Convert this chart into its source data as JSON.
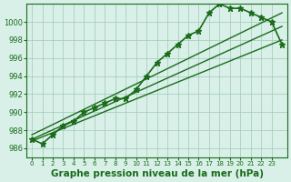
{
  "pressure_data": [
    987.0,
    986.5,
    987.5,
    988.5,
    989.0,
    990.0,
    990.5,
    991.0,
    991.5,
    991.5,
    992.5,
    994.0,
    995.5,
    996.5,
    997.5,
    998.5,
    999.0,
    1001.0,
    1002.0,
    1001.5,
    1001.5,
    1001.0,
    1000.5,
    1000.0,
    997.5
  ],
  "x_values": [
    0,
    1,
    2,
    3,
    4,
    5,
    6,
    7,
    8,
    9,
    10,
    11,
    12,
    13,
    14,
    15,
    16,
    17,
    18,
    19,
    20,
    21,
    22,
    23,
    24
  ],
  "trend_line": [
    [
      0,
      986.8
    ],
    [
      24,
      998.0
    ]
  ],
  "trend_line2": [
    [
      0,
      987.5
    ],
    [
      24,
      1001.0
    ]
  ],
  "ylim": [
    985,
    1002
  ],
  "yticks": [
    986,
    988,
    990,
    992,
    994,
    996,
    998,
    1000
  ],
  "xlim": [
    -0.5,
    24.5
  ],
  "xtick_labels": [
    "0",
    "1",
    "2",
    "3",
    "4",
    "5",
    "6",
    "7",
    "8",
    "9",
    "10",
    "11",
    "12",
    "13",
    "14",
    "15",
    "16",
    "17",
    "18",
    "19",
    "20",
    "21",
    "22",
    "23"
  ],
  "xlabel": "Graphe pression niveau de la mer (hPa)",
  "line_color": "#1a6b1a",
  "bg_color": "#d8f0e8",
  "grid_color": "#a0c8b8",
  "marker": "*",
  "marker_size": 5,
  "line_width": 1.2,
  "title_fontsize": 8,
  "xlabel_fontsize": 7.5
}
